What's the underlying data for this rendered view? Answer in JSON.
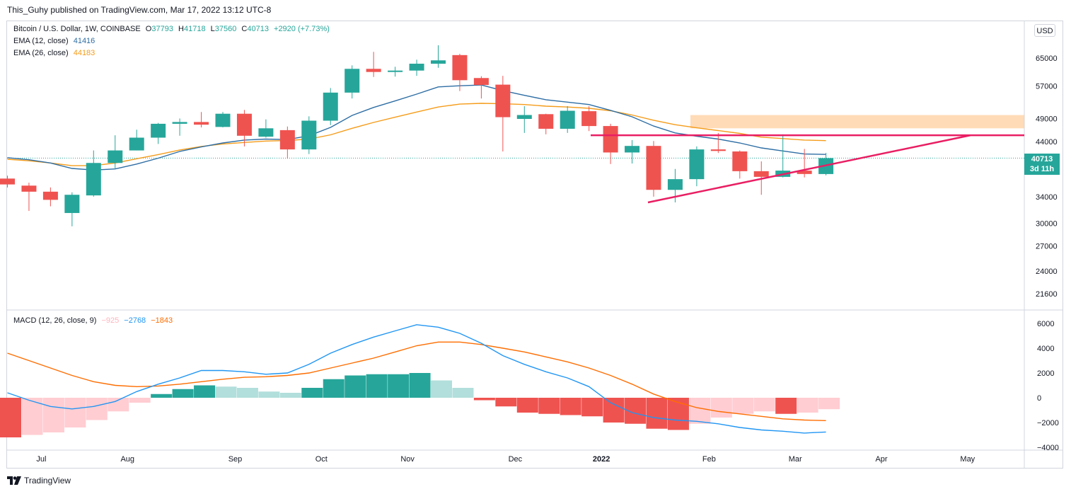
{
  "header": {
    "publish_line": "This_Guhy published on TradingView.com, Mar 17, 2022 13:12 UTC-8"
  },
  "legend": {
    "symbol": "Bitcoin / U.S. Dollar, 1W, COINBASE",
    "o_label": "O",
    "o_value": "37793",
    "h_label": "H",
    "h_value": "41718",
    "l_label": "L",
    "l_value": "37560",
    "c_label": "C",
    "c_value": "40713",
    "change": "+2920 (+7.73%)",
    "ema12_label": "EMA (12, close)",
    "ema12_value": "41416",
    "ema26_label": "EMA (26, close)",
    "ema26_value": "44183",
    "macd_label": "MACD (12, 26, close, 9)",
    "macd_hist": "−925",
    "macd_line": "−2768",
    "macd_signal": "−1843"
  },
  "price_axis": {
    "currency_button": "USD",
    "ticks": [
      "65000",
      "57000",
      "49000",
      "44000",
      "34000",
      "30000",
      "27000",
      "24000",
      "21600"
    ],
    "last_price": "40713",
    "countdown": "3d 11h"
  },
  "macd_axis": {
    "ticks": [
      "6000",
      "4000",
      "2000",
      "0",
      "−2000",
      "−4000"
    ]
  },
  "time_axis": {
    "labels": [
      "Jul",
      "Aug",
      "Sep",
      "Oct",
      "Nov",
      "Dec",
      "2022",
      "Feb",
      "Mar",
      "Apr",
      "May"
    ]
  },
  "footer": {
    "brand": "TradingView"
  },
  "colors": {
    "up": "#26a69a",
    "down": "#ef5350",
    "ema12": "#2e6ea4",
    "ema26": "#f59c1a",
    "trendline": "#e91e63",
    "resistance_zone": "#ffcc99",
    "macd_line": "#2196f3",
    "signal_line": "#ff6d00",
    "hist_pos_strong": "#26a69a",
    "hist_pos_weak": "#b2dfdb",
    "hist_neg_strong": "#ef5350",
    "hist_neg_weak": "#ffcdd2"
  },
  "chart_data": [
    {
      "type": "candlestick",
      "title": "Bitcoin / U.S. Dollar, 1W, COINBASE",
      "ylabel": "USD",
      "scale": "log",
      "ylim": [
        19000,
        75000
      ],
      "candles": [
        {
          "o": 37000,
          "h": 37500,
          "l": 35500,
          "c": 36000
        },
        {
          "o": 35800,
          "h": 36300,
          "l": 31800,
          "c": 34800
        },
        {
          "o": 34800,
          "h": 35500,
          "l": 32500,
          "c": 33500
        },
        {
          "o": 31500,
          "h": 34700,
          "l": 29600,
          "c": 34300
        },
        {
          "o": 34200,
          "h": 42200,
          "l": 34000,
          "c": 39800
        },
        {
          "o": 39800,
          "h": 45300,
          "l": 38800,
          "c": 42200
        },
        {
          "o": 42200,
          "h": 46500,
          "l": 42200,
          "c": 44800
        },
        {
          "o": 44800,
          "h": 48000,
          "l": 43500,
          "c": 47800
        },
        {
          "o": 47800,
          "h": 49000,
          "l": 45200,
          "c": 48200
        },
        {
          "o": 48200,
          "h": 50500,
          "l": 47000,
          "c": 47600
        },
        {
          "o": 47100,
          "h": 50500,
          "l": 47000,
          "c": 50100
        },
        {
          "o": 50100,
          "h": 51000,
          "l": 43000,
          "c": 45200
        },
        {
          "o": 45000,
          "h": 48800,
          "l": 44800,
          "c": 46800
        },
        {
          "o": 46400,
          "h": 47200,
          "l": 40600,
          "c": 42400
        },
        {
          "o": 42400,
          "h": 49500,
          "l": 41500,
          "c": 48500
        },
        {
          "o": 48500,
          "h": 56500,
          "l": 47500,
          "c": 55300
        },
        {
          "o": 55300,
          "h": 62800,
          "l": 53800,
          "c": 61800
        },
        {
          "o": 61800,
          "h": 66900,
          "l": 59500,
          "c": 60900
        },
        {
          "o": 60900,
          "h": 62400,
          "l": 59600,
          "c": 61300
        },
        {
          "o": 61300,
          "h": 64500,
          "l": 59800,
          "c": 63300
        },
        {
          "o": 63300,
          "h": 69000,
          "l": 62100,
          "c": 64300
        },
        {
          "o": 65900,
          "h": 66300,
          "l": 55700,
          "c": 58600
        },
        {
          "o": 59200,
          "h": 59700,
          "l": 53800,
          "c": 57300
        },
        {
          "o": 57400,
          "h": 59800,
          "l": 42000,
          "c": 49300
        },
        {
          "o": 48900,
          "h": 51900,
          "l": 45800,
          "c": 49800
        },
        {
          "o": 50000,
          "h": 50100,
          "l": 45500,
          "c": 46700
        },
        {
          "o": 46700,
          "h": 51900,
          "l": 45800,
          "c": 50800
        },
        {
          "o": 50700,
          "h": 51900,
          "l": 46200,
          "c": 47300
        },
        {
          "o": 47300,
          "h": 47800,
          "l": 39600,
          "c": 41800
        },
        {
          "o": 41800,
          "h": 44300,
          "l": 39700,
          "c": 43100
        },
        {
          "o": 43100,
          "h": 44100,
          "l": 34000,
          "c": 35100
        },
        {
          "o": 35100,
          "h": 38700,
          "l": 33100,
          "c": 36900
        },
        {
          "o": 36900,
          "h": 43000,
          "l": 35700,
          "c": 42400
        },
        {
          "o": 42400,
          "h": 45800,
          "l": 41700,
          "c": 42100
        },
        {
          "o": 42000,
          "h": 42200,
          "l": 37000,
          "c": 38300
        },
        {
          "o": 38300,
          "h": 40100,
          "l": 34300,
          "c": 37300
        },
        {
          "o": 37300,
          "h": 45500,
          "l": 37200,
          "c": 38400
        },
        {
          "o": 38400,
          "h": 42500,
          "l": 37200,
          "c": 37800
        },
        {
          "o": 37793,
          "h": 41718,
          "l": 37560,
          "c": 40713
        }
      ],
      "ema12": [
        40800,
        40400,
        39800,
        38800,
        38500,
        38700,
        39600,
        40700,
        42000,
        42900,
        43700,
        44300,
        44500,
        44400,
        45200,
        47000,
        49700,
        51600,
        53200,
        54900,
        56800,
        57100,
        57300,
        55800,
        54600,
        53500,
        52900,
        52300,
        50900,
        49400,
        47300,
        45800,
        45100,
        44500,
        43700,
        42700,
        42100,
        41500,
        41416
      ],
      "ema26": [
        40500,
        40200,
        39800,
        39300,
        39300,
        39800,
        40600,
        41400,
        42300,
        43000,
        43500,
        43800,
        44100,
        44200,
        44500,
        45400,
        46800,
        48100,
        49300,
        50500,
        51700,
        52400,
        52600,
        52500,
        52300,
        51900,
        51700,
        51400,
        50800,
        49800,
        48600,
        47600,
        46900,
        46300,
        45700,
        44900,
        44600,
        44300,
        44183
      ]
    },
    {
      "type": "bar+line",
      "title": "MACD (12, 26, close, 9)",
      "ylim": [
        -4200,
        6800
      ],
      "histogram": [
        -3200,
        -3000,
        -2800,
        -2400,
        -1800,
        -1100,
        -400,
        300,
        700,
        1000,
        900,
        800,
        500,
        400,
        800,
        1500,
        1800,
        1900,
        1900,
        2000,
        1400,
        800,
        -200,
        -700,
        -1200,
        -1300,
        -1400,
        -1500,
        -2000,
        -2100,
        -2500,
        -2600,
        -2100,
        -1600,
        -1300,
        -1100,
        -1300,
        -1200,
        -925
      ],
      "macd": [
        400,
        -200,
        -700,
        -900,
        -700,
        -300,
        500,
        1100,
        1600,
        2200,
        2200,
        2100,
        1900,
        2000,
        2700,
        3600,
        4300,
        4900,
        5400,
        5900,
        5700,
        5200,
        4400,
        3400,
        2700,
        2100,
        1600,
        900,
        -400,
        -1200,
        -1600,
        -1800,
        -1900,
        -2100,
        -2400,
        -2600,
        -2700,
        -2850,
        -2768
      ],
      "signal": [
        3600,
        3000,
        2400,
        1800,
        1300,
        1000,
        900,
        950,
        1100,
        1300,
        1500,
        1650,
        1700,
        1800,
        2000,
        2400,
        2800,
        3200,
        3700,
        4200,
        4500,
        4500,
        4300,
        4000,
        3700,
        3300,
        2900,
        2400,
        1800,
        1100,
        300,
        -300,
        -800,
        -1100,
        -1300,
        -1500,
        -1700,
        -1800,
        -1843
      ]
    }
  ]
}
